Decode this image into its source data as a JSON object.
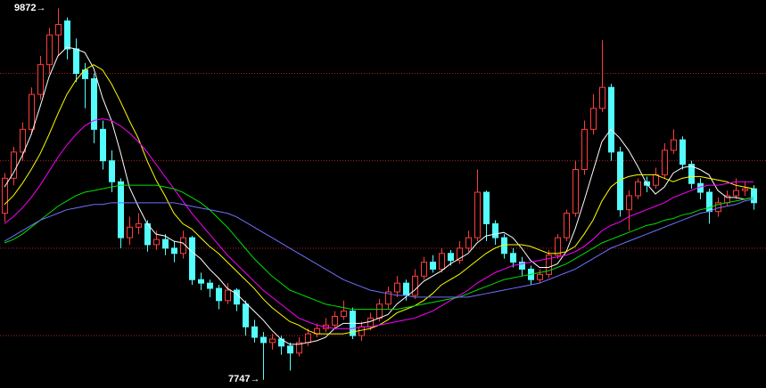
{
  "chart_data": {
    "type": "candlestick",
    "open": [
      8700,
      8900,
      9050,
      9180,
      9380,
      9550,
      9720,
      9800,
      9640,
      9520,
      9470,
      9180,
      9000,
      8880,
      8560,
      8620,
      8640,
      8520,
      8550,
      8500,
      8470,
      8560,
      8320,
      8300,
      8270,
      8200,
      8260,
      8180,
      8050,
      7990,
      7960,
      7980,
      7940,
      7900,
      7960,
      8010,
      8040,
      8060,
      8110,
      8140,
      8000,
      8050,
      8100,
      8180,
      8250,
      8300,
      8230,
      8340,
      8420,
      8380,
      8470,
      8430,
      8500,
      8560,
      8820,
      8640,
      8560,
      8470,
      8420,
      8380,
      8320,
      8350,
      8460,
      8560,
      8700,
      8950,
      9180,
      9300,
      9420,
      9050,
      8720,
      8800,
      8880,
      8860,
      8920,
      9060,
      9120,
      8980,
      8870,
      8820,
      8710,
      8760,
      8800,
      8830,
      8840
    ],
    "high": [
      8930,
      9080,
      9220,
      9420,
      9600,
      9760,
      9872,
      9820,
      9700,
      9560,
      9500,
      9230,
      9060,
      8900,
      8680,
      8700,
      8660,
      8600,
      8580,
      8540,
      8600,
      8570,
      8360,
      8320,
      8290,
      8300,
      8270,
      8200,
      8090,
      8020,
      8010,
      8000,
      7960,
      7990,
      8040,
      8070,
      8100,
      8140,
      8200,
      8160,
      8080,
      8130,
      8210,
      8280,
      8340,
      8320,
      8380,
      8450,
      8460,
      8500,
      8490,
      8540,
      8600,
      8950,
      8830,
      8660,
      8580,
      8500,
      8450,
      8400,
      8380,
      8490,
      8580,
      8720,
      9000,
      9230,
      9380,
      9690,
      9440,
      9080,
      8830,
      8900,
      8910,
      8960,
      9100,
      9180,
      9140,
      9000,
      8900,
      8840,
      8790,
      8830,
      8900,
      8880,
      8860
    ],
    "low": [
      8650,
      8860,
      9000,
      9150,
      9350,
      9500,
      9600,
      9580,
      9450,
      9300,
      9100,
      8950,
      8820,
      8500,
      8520,
      8580,
      8480,
      8490,
      8460,
      8420,
      8440,
      8290,
      8260,
      8220,
      8150,
      8180,
      8140,
      8000,
      7960,
      7747,
      7920,
      7890,
      7800,
      7880,
      7940,
      7990,
      8020,
      8040,
      8090,
      7980,
      7970,
      8030,
      8080,
      8150,
      8220,
      8200,
      8210,
      8320,
      8360,
      8360,
      8400,
      8410,
      8480,
      8540,
      8540,
      8520,
      8440,
      8390,
      8340,
      8290,
      8300,
      8330,
      8440,
      8540,
      8680,
      8920,
      9150,
      9280,
      9000,
      8680,
      8600,
      8780,
      8820,
      8840,
      8900,
      9040,
      8950,
      8840,
      8780,
      8640,
      8680,
      8740,
      8780,
      8800,
      8720
    ],
    "close": [
      8900,
      9050,
      9180,
      9380,
      9550,
      9720,
      9780,
      9640,
      9500,
      9470,
      9180,
      9000,
      8880,
      8560,
      8620,
      8640,
      8520,
      8550,
      8500,
      8470,
      8560,
      8320,
      8300,
      8270,
      8200,
      8260,
      8180,
      8050,
      7990,
      7960,
      7980,
      7940,
      7900,
      7960,
      8010,
      8040,
      8060,
      8110,
      8140,
      8000,
      8050,
      8100,
      8180,
      8250,
      8300,
      8230,
      8340,
      8420,
      8380,
      8470,
      8430,
      8500,
      8560,
      8820,
      8640,
      8560,
      8470,
      8420,
      8380,
      8320,
      8350,
      8460,
      8560,
      8700,
      8950,
      9180,
      9300,
      9420,
      9050,
      8720,
      8800,
      8880,
      8860,
      8920,
      9060,
      9120,
      8980,
      8870,
      8820,
      8710,
      8760,
      8800,
      8830,
      8840,
      8760
    ],
    "up_color": "#ff3c3c",
    "down_color": "#54fcfc",
    "series": [
      {
        "color": "#ffffff",
        "values": [
          8850,
          8930,
          9030,
          9150,
          9310,
          9480,
          9600,
          9650,
          9640,
          9620,
          9530,
          9360,
          9230,
          9050,
          8850,
          8740,
          8640,
          8580,
          8570,
          8540,
          8530,
          8480,
          8440,
          8380,
          8330,
          8270,
          8240,
          8190,
          8140,
          8090,
          8030,
          7980,
          7950,
          7950,
          7960,
          7970,
          7990,
          8040,
          8070,
          8070,
          8070,
          8080,
          8100,
          8120,
          8180,
          8220,
          8260,
          8310,
          8340,
          8370,
          8410,
          8440,
          8470,
          8530,
          8570,
          8580,
          8590,
          8560,
          8500,
          8430,
          8390,
          8390,
          8410,
          8480,
          8610,
          8770,
          8940,
          9110,
          9180,
          9130,
          9060,
          8970,
          8870,
          8810,
          8850,
          8930,
          8960,
          8970,
          8950,
          8920,
          8830,
          8790,
          8790,
          8780,
          8790
        ]
      },
      {
        "color": "#ffff00",
        "values": [
          8750,
          8800,
          8870,
          8950,
          9040,
          9150,
          9270,
          9380,
          9460,
          9520,
          9550,
          9520,
          9440,
          9340,
          9230,
          9130,
          9000,
          8890,
          8800,
          8700,
          8640,
          8610,
          8560,
          8510,
          8470,
          8420,
          8370,
          8320,
          8270,
          8210,
          8160,
          8120,
          8080,
          8060,
          8030,
          8010,
          8010,
          8010,
          8010,
          8020,
          8030,
          8040,
          8060,
          8090,
          8130,
          8150,
          8170,
          8200,
          8240,
          8290,
          8320,
          8350,
          8390,
          8430,
          8470,
          8500,
          8520,
          8520,
          8520,
          8510,
          8490,
          8470,
          8470,
          8480,
          8510,
          8580,
          8660,
          8770,
          8850,
          8890,
          8910,
          8920,
          8920,
          8920,
          8900,
          8880,
          8900,
          8910,
          8910,
          8900,
          8890,
          8880,
          8860,
          8850,
          8840
        ]
      },
      {
        "color": "#ff00ff",
        "values": [
          8640,
          8680,
          8730,
          8790,
          8860,
          8940,
          9020,
          9090,
          9150,
          9200,
          9230,
          9240,
          9230,
          9200,
          9160,
          9110,
          9050,
          8980,
          8910,
          8840,
          8770,
          8700,
          8640,
          8580,
          8520,
          8460,
          8410,
          8360,
          8310,
          8260,
          8220,
          8180,
          8140,
          8100,
          8080,
          8060,
          8050,
          8040,
          8040,
          8040,
          8050,
          8050,
          8060,
          8070,
          8080,
          8090,
          8100,
          8120,
          8140,
          8170,
          8200,
          8230,
          8260,
          8300,
          8330,
          8360,
          8380,
          8400,
          8410,
          8420,
          8430,
          8440,
          8450,
          8460,
          8480,
          8510,
          8550,
          8600,
          8630,
          8650,
          8680,
          8700,
          8720,
          8740,
          8760,
          8790,
          8810,
          8830,
          8850,
          8860,
          8860,
          8870,
          8880,
          8880,
          8880
        ]
      },
      {
        "color": "#00e000",
        "values": [
          8530,
          8550,
          8580,
          8620,
          8660,
          8700,
          8740,
          8770,
          8800,
          8820,
          8830,
          8840,
          8850,
          8860,
          8860,
          8860,
          8860,
          8860,
          8850,
          8840,
          8820,
          8790,
          8760,
          8720,
          8670,
          8620,
          8560,
          8500,
          8440,
          8390,
          8340,
          8300,
          8260,
          8240,
          8220,
          8200,
          8180,
          8170,
          8160,
          8150,
          8150,
          8150,
          8150,
          8150,
          8150,
          8160,
          8170,
          8180,
          8190,
          8200,
          8210,
          8220,
          8240,
          8260,
          8280,
          8300,
          8320,
          8330,
          8340,
          8350,
          8360,
          8370,
          8390,
          8410,
          8440,
          8470,
          8500,
          8530,
          8550,
          8570,
          8590,
          8610,
          8630,
          8640,
          8660,
          8670,
          8690,
          8700,
          8720,
          8730,
          8750,
          8760,
          8770,
          8780,
          8790
        ]
      },
      {
        "color": "#7070ff",
        "values": [
          8540,
          8570,
          8600,
          8630,
          8660,
          8680,
          8700,
          8720,
          8730,
          8740,
          8750,
          8750,
          8760,
          8760,
          8760,
          8760,
          8760,
          8760,
          8760,
          8760,
          8750,
          8740,
          8730,
          8720,
          8710,
          8700,
          8680,
          8650,
          8620,
          8590,
          8560,
          8530,
          8500,
          8470,
          8440,
          8410,
          8380,
          8350,
          8320,
          8300,
          8280,
          8260,
          8250,
          8240,
          8230,
          8230,
          8220,
          8220,
          8220,
          8220,
          8220,
          8220,
          8220,
          8230,
          8240,
          8250,
          8260,
          8270,
          8280,
          8290,
          8300,
          8320,
          8340,
          8360,
          8380,
          8410,
          8440,
          8470,
          8500,
          8520,
          8540,
          8560,
          8580,
          8600,
          8620,
          8640,
          8660,
          8680,
          8700,
          8710,
          8730,
          8740,
          8750,
          8770,
          8780
        ]
      }
    ],
    "annotations": [
      {
        "text": "9872→"
      },
      {
        "text": "7747→"
      }
    ],
    "ylim": [
      7700,
      9920
    ],
    "yticks": [
      8000,
      8500,
      9000,
      9500
    ],
    "grid": true,
    "grid_color": "#b02020"
  }
}
